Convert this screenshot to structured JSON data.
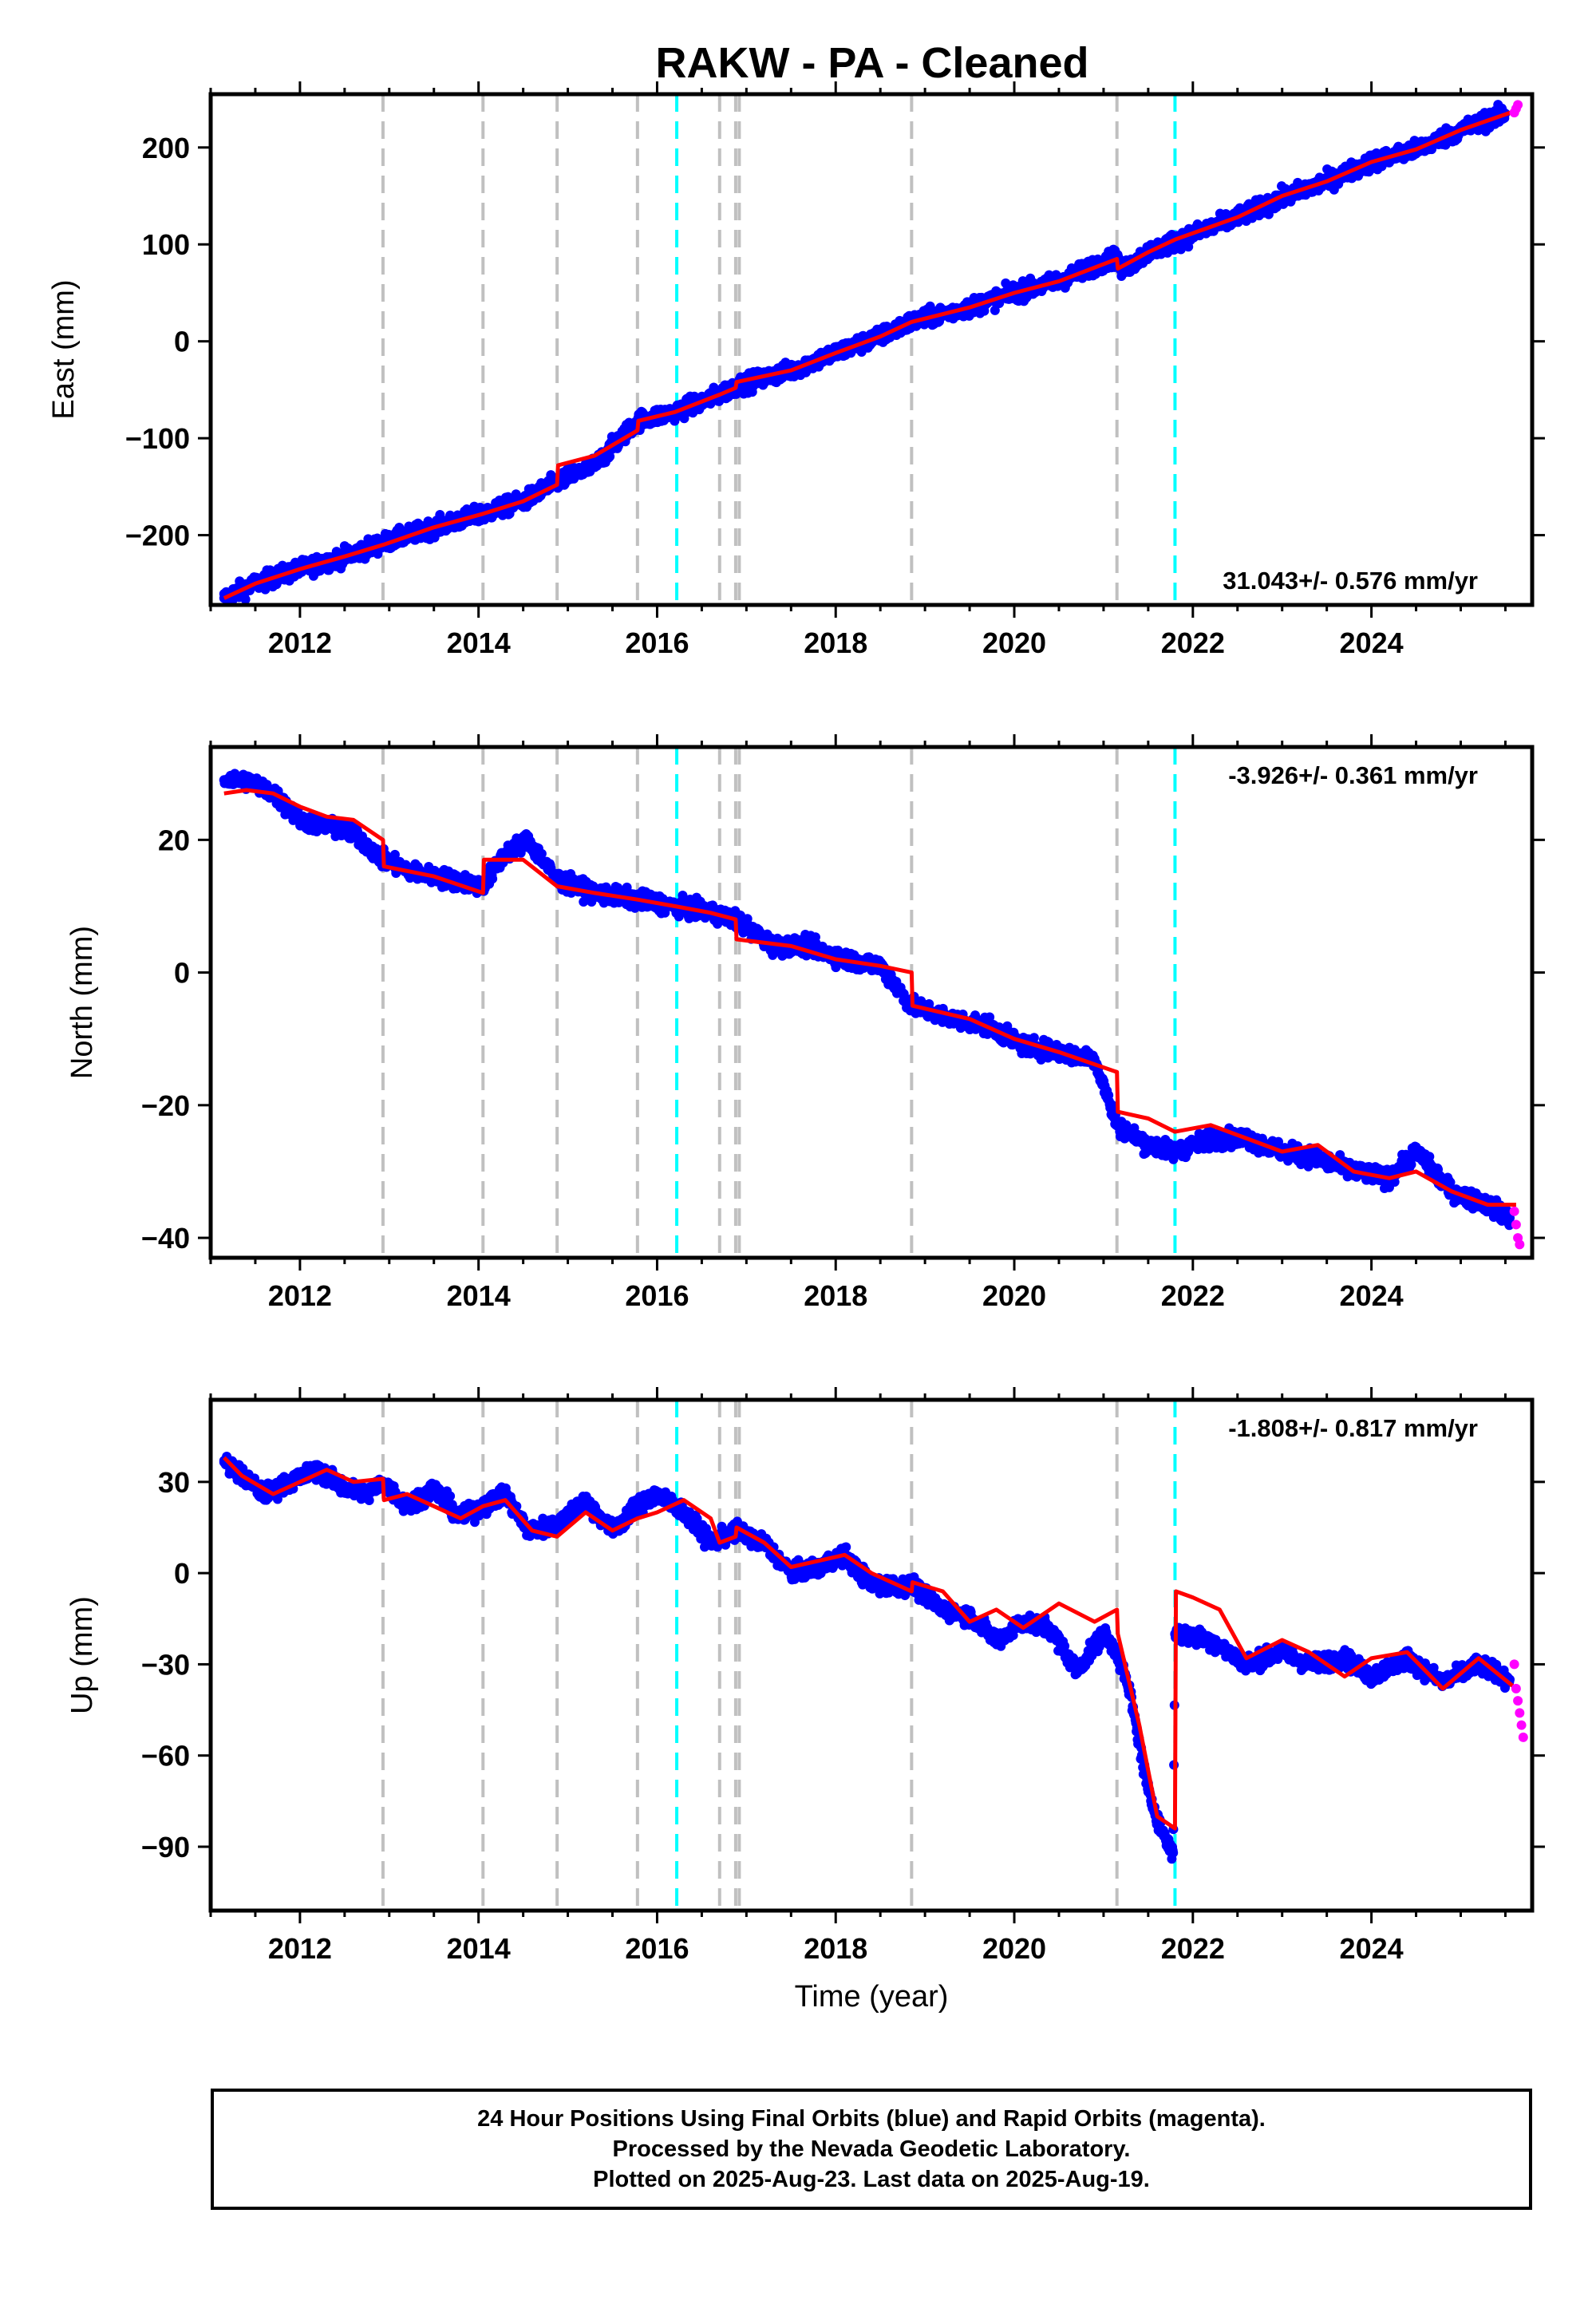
{
  "chart_data": [
    {
      "type": "scatter",
      "title": "RAKW  - PA - Cleaned",
      "ylabel": "East (mm)",
      "xlabel": "",
      "xlim": [
        2011.0,
        2025.8
      ],
      "ylim": [
        -272,
        255
      ],
      "xticks": [
        2012,
        2014,
        2016,
        2018,
        2020,
        2022,
        2024
      ],
      "yticks": [
        -200,
        -100,
        0,
        100,
        200
      ],
      "rate_label": "31.043+/- 0.576 mm/yr",
      "rate_label_position": "bottom-right",
      "grid": false,
      "colors": {
        "final": "#0000ff",
        "rapid": "#ff00ff",
        "model": "#ff0000",
        "equipment_change": "#c0c0c0",
        "earthquake": "#00ffff"
      },
      "series": [
        {
          "key": "final_orbits",
          "x": [
            2011.15,
            2011.5,
            2012.0,
            2012.5,
            2012.93,
            2013.5,
            2014.05,
            2014.5,
            2014.88,
            2015.3,
            2015.78,
            2016.2,
            2016.7,
            2016.88,
            2017.5,
            2018.0,
            2018.5,
            2018.85,
            2019.5,
            2020.0,
            2020.5,
            2021.0,
            2021.15,
            2021.2,
            2021.5,
            2021.8,
            2022.5,
            2023.0,
            2023.5,
            2024.0,
            2024.5,
            2025.0,
            2025.5
          ],
          "y": [
            -265,
            -250,
            -235,
            -222,
            -208,
            -192,
            -178,
            -165,
            -145,
            -128,
            -82,
            -73,
            -55,
            -46,
            -30,
            -12,
            5,
            20,
            35,
            50,
            62,
            82,
            87,
            73,
            92,
            103,
            128,
            148,
            165,
            185,
            198,
            218,
            235
          ]
        },
        {
          "key": "rapid_orbits",
          "x": [
            2025.6,
            2025.62,
            2025.64
          ],
          "y": [
            236,
            240,
            244
          ]
        }
      ],
      "model_line": {
        "x": [
          2011.15,
          2011.5,
          2012.0,
          2012.5,
          2012.93,
          2013.5,
          2014.05,
          2014.5,
          2014.88,
          2014.89,
          2015.3,
          2015.78,
          2015.79,
          2016.2,
          2016.7,
          2016.88,
          2016.89,
          2017.5,
          2018.0,
          2018.5,
          2018.85,
          2019.5,
          2020.0,
          2020.5,
          2021.15,
          2021.16,
          2021.5,
          2021.8,
          2022.5,
          2023.0,
          2023.5,
          2024.0,
          2024.5,
          2025.0,
          2025.62
        ],
        "y": [
          -265,
          -250,
          -235,
          -222,
          -210,
          -192,
          -178,
          -165,
          -148,
          -128,
          -118,
          -92,
          -82,
          -73,
          -55,
          -48,
          -42,
          -30,
          -12,
          5,
          20,
          35,
          50,
          62,
          85,
          75,
          92,
          105,
          128,
          150,
          165,
          185,
          198,
          218,
          238
        ]
      },
      "equipment_changes": [
        2012.93,
        2014.05,
        2014.88,
        2015.78,
        2016.7,
        2016.88,
        2016.92,
        2018.85,
        2021.15
      ],
      "earthquakes": [
        2016.22,
        2021.8
      ]
    },
    {
      "type": "scatter",
      "title": "",
      "ylabel": "North (mm)",
      "xlabel": "",
      "xlim": [
        2011.0,
        2025.8
      ],
      "ylim": [
        -43,
        34
      ],
      "xticks": [
        2012,
        2014,
        2016,
        2018,
        2020,
        2022,
        2024
      ],
      "yticks": [
        -40,
        -20,
        0,
        20
      ],
      "rate_label": "-3.926+/- 0.361 mm/yr",
      "rate_label_position": "top-right",
      "grid": false,
      "series": [
        {
          "key": "final_orbits",
          "x": [
            2011.15,
            2011.4,
            2011.7,
            2012.0,
            2012.3,
            2012.6,
            2012.93,
            2013.3,
            2013.7,
            2014.05,
            2014.3,
            2014.55,
            2014.88,
            2015.3,
            2015.78,
            2016.2,
            2016.6,
            2016.88,
            2017.3,
            2017.7,
            2018.1,
            2018.5,
            2018.85,
            2019.3,
            2019.7,
            2020.1,
            2020.5,
            2020.9,
            2021.15,
            2021.5,
            2021.8,
            2022.2,
            2022.6,
            2023.0,
            2023.4,
            2023.8,
            2024.2,
            2024.5,
            2024.9,
            2025.3,
            2025.55
          ],
          "y": [
            29,
            29,
            27,
            23,
            22,
            21,
            17,
            15,
            14,
            13,
            18,
            20,
            14,
            12,
            11,
            10,
            9,
            8,
            4,
            4,
            2,
            1,
            -5,
            -7,
            -8,
            -11,
            -12,
            -13,
            -23,
            -26,
            -27,
            -25,
            -25,
            -27,
            -28,
            -30,
            -31,
            -27,
            -33,
            -35,
            -37
          ]
        },
        {
          "key": "rapid_orbits",
          "x": [
            2025.6,
            2025.62,
            2025.64,
            2025.66
          ],
          "y": [
            -36,
            -38,
            -40,
            -41
          ]
        }
      ],
      "model_line": {
        "x": [
          2011.15,
          2011.4,
          2011.7,
          2012.0,
          2012.3,
          2012.6,
          2012.93,
          2012.94,
          2013.5,
          2014.05,
          2014.06,
          2014.5,
          2014.88,
          2015.3,
          2015.78,
          2016.2,
          2016.6,
          2016.88,
          2016.89,
          2017.5,
          2018.0,
          2018.5,
          2018.85,
          2018.86,
          2019.5,
          2020.0,
          2020.5,
          2021.15,
          2021.16,
          2021.5,
          2021.8,
          2022.2,
          2022.6,
          2023.0,
          2023.4,
          2023.8,
          2024.2,
          2024.5,
          2024.9,
          2025.3,
          2025.62
        ],
        "y": [
          27,
          27.5,
          27,
          25,
          23.5,
          23,
          20,
          16,
          14.5,
          12,
          17,
          17,
          13,
          12,
          11,
          10,
          9,
          8,
          5,
          4,
          2,
          1,
          0,
          -5,
          -7,
          -10,
          -12,
          -15,
          -21,
          -22,
          -24,
          -23,
          -25,
          -27,
          -26,
          -30,
          -31,
          -30,
          -33,
          -35,
          -35
        ]
      },
      "equipment_changes": [
        2012.93,
        2014.05,
        2014.88,
        2015.78,
        2016.7,
        2016.88,
        2016.92,
        2018.85,
        2021.15
      ],
      "earthquakes": [
        2016.22,
        2021.8
      ]
    },
    {
      "type": "scatter",
      "title": "",
      "ylabel": "Up (mm)",
      "xlabel": "Time (year)",
      "xlim": [
        2011.0,
        2025.8
      ],
      "ylim": [
        -111,
        57
      ],
      "xticks": [
        2012,
        2014,
        2016,
        2018,
        2020,
        2022,
        2024
      ],
      "yticks": [
        -90,
        -60,
        -30,
        0,
        30
      ],
      "rate_label": "-1.808+/- 0.817 mm/yr",
      "rate_label_position": "top-right",
      "grid": false,
      "series": [
        {
          "key": "final_orbits",
          "x": [
            2011.15,
            2011.35,
            2011.6,
            2011.9,
            2012.2,
            2012.5,
            2012.75,
            2012.93,
            2013.2,
            2013.5,
            2013.8,
            2014.05,
            2014.3,
            2014.55,
            2014.88,
            2015.2,
            2015.5,
            2015.78,
            2016.0,
            2016.3,
            2016.6,
            2016.88,
            2017.2,
            2017.5,
            2017.8,
            2018.1,
            2018.4,
            2018.85,
            2019.2,
            2019.5,
            2019.8,
            2020.1,
            2020.4,
            2020.7,
            2021.0,
            2021.15,
            2021.3,
            2021.5,
            2021.7,
            2021.78,
            2021.8,
            2022.2,
            2022.6,
            2023.0,
            2023.3,
            2023.7,
            2024.0,
            2024.4,
            2024.8,
            2025.2,
            2025.55
          ],
          "y": [
            37,
            32,
            26,
            30,
            34,
            28,
            26,
            30,
            22,
            28,
            18,
            22,
            26,
            14,
            16,
            24,
            14,
            22,
            26,
            20,
            10,
            14,
            10,
            0,
            2,
            6,
            -4,
            -4,
            -12,
            -14,
            -22,
            -16,
            -18,
            -32,
            -20,
            -26,
            -40,
            -72,
            -88,
            -92,
            -20,
            -22,
            -30,
            -26,
            -30,
            -28,
            -34,
            -28,
            -36,
            -30,
            -35
          ]
        },
        {
          "key": "rapid_orbits",
          "x": [
            2025.6,
            2025.62,
            2025.64,
            2025.66,
            2025.68,
            2025.7
          ],
          "y": [
            -30,
            -38,
            -42,
            -46,
            -50,
            -54
          ]
        }
      ],
      "model_line": {
        "x": [
          2011.15,
          2011.35,
          2011.7,
          2012.0,
          2012.3,
          2012.6,
          2012.93,
          2012.94,
          2013.2,
          2013.5,
          2013.8,
          2014.05,
          2014.3,
          2014.6,
          2014.88,
          2015.2,
          2015.5,
          2015.78,
          2016.0,
          2016.3,
          2016.6,
          2016.7,
          2016.88,
          2016.89,
          2017.2,
          2017.5,
          2017.8,
          2018.1,
          2018.4,
          2018.85,
          2018.86,
          2019.2,
          2019.5,
          2019.8,
          2020.1,
          2020.5,
          2020.9,
          2021.15,
          2021.16,
          2021.4,
          2021.6,
          2021.8,
          2021.81,
          2022.0,
          2022.3,
          2022.6,
          2023.0,
          2023.3,
          2023.7,
          2024.0,
          2024.4,
          2024.8,
          2025.2,
          2025.62
        ],
        "y": [
          38,
          32,
          26,
          30,
          34,
          30,
          31,
          24,
          26,
          22,
          18,
          22,
          24,
          14,
          12,
          20,
          14,
          18,
          20,
          24,
          18,
          10,
          12,
          15,
          10,
          2,
          4,
          6,
          0,
          -6,
          -3,
          -6,
          -16,
          -12,
          -18,
          -10,
          -16,
          -12,
          -20,
          -50,
          -80,
          -84,
          -6,
          -8,
          -12,
          -28,
          -22,
          -26,
          -34,
          -28,
          -26,
          -38,
          -28,
          -38
        ]
      },
      "equipment_changes": [
        2012.93,
        2014.05,
        2014.88,
        2015.78,
        2016.7,
        2016.88,
        2016.92,
        2018.85,
        2021.15
      ],
      "earthquakes": [
        2016.22,
        2021.8
      ]
    }
  ],
  "footer": {
    "line1": "24 Hour Positions Using Final Orbits (blue) and Rapid Orbits (magenta).",
    "line2": "Processed by the Nevada Geodetic Laboratory.",
    "line3": "Plotted on 2025-Aug-23. Last data on 2025-Aug-19."
  }
}
